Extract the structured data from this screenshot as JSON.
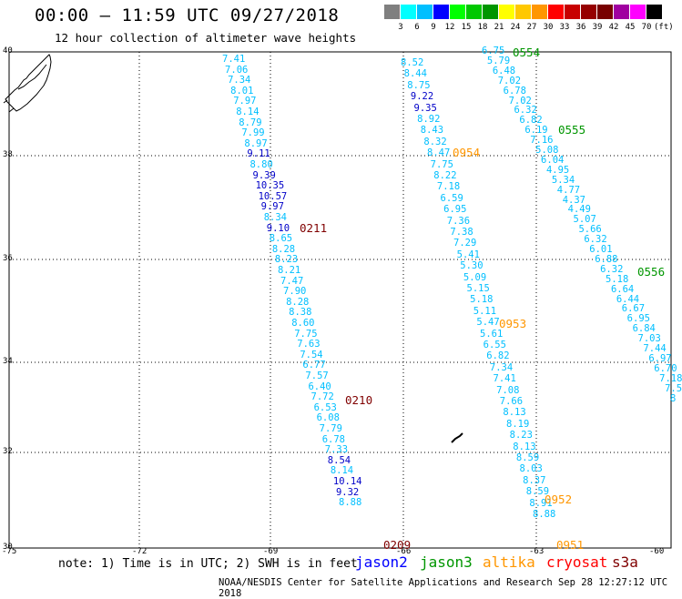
{
  "title": "00:00 – 11:59 UTC 09/27/2018",
  "subtitle": "12 hour collection of altimeter wave heights",
  "legend": {
    "labels": [
      "3",
      "6",
      "9",
      "12",
      "15",
      "18",
      "21",
      "24",
      "27",
      "30",
      "33",
      "36",
      "39",
      "42",
      "45",
      "70",
      "(ft)"
    ],
    "colors": [
      "#7f7f7f",
      "#00ffff",
      "#00bfff",
      "#0000ff",
      "#00ff00",
      "#00c800",
      "#009600",
      "#ffff00",
      "#ffc800",
      "#ff9600",
      "#ff0000",
      "#c80000",
      "#960000",
      "#780000",
      "#a000a0",
      "#ff00ff",
      "#000000"
    ]
  },
  "lat_labels": [
    "40",
    "38",
    "36",
    "34",
    "32",
    "30"
  ],
  "lon_labels": [
    "-75",
    "-72",
    "-69",
    "-66",
    "-63",
    "-60"
  ],
  "track_colors": {
    "c": "#00bfff",
    "d": "#0000c8",
    "m": "#800000",
    "o": "#ff9600",
    "g": "#009600"
  },
  "tracks": [
    {
      "points": [
        [
          "7.41",
          "c"
        ],
        [
          "7.06",
          "c"
        ],
        [
          "7.34",
          "c"
        ],
        [
          "8.01",
          "c"
        ],
        [
          "7.97",
          "c"
        ],
        [
          "8.14",
          "c"
        ],
        [
          "8.79",
          "c"
        ],
        [
          "7.99",
          "c"
        ],
        [
          "8.97",
          "c"
        ],
        [
          "9.11",
          "d"
        ],
        [
          "8.80",
          "c"
        ],
        [
          "9.39",
          "d"
        ],
        [
          "10.35",
          "d"
        ],
        [
          "10.57",
          "d"
        ],
        [
          "9.97",
          "d"
        ],
        [
          "8.34",
          "c"
        ],
        [
          "9.10",
          "d"
        ],
        [
          "8.65",
          "c"
        ],
        [
          "8.28",
          "c"
        ],
        [
          "8.23",
          "c"
        ],
        [
          "8.21",
          "c"
        ],
        [
          "7.47",
          "c"
        ],
        [
          "7.90",
          "c"
        ],
        [
          "8.28",
          "c"
        ],
        [
          "8.38",
          "c"
        ],
        [
          "8.60",
          "c"
        ],
        [
          "7.75",
          "c"
        ],
        [
          "7.63",
          "c"
        ],
        [
          "7.54",
          "c"
        ],
        [
          "6.77",
          "c"
        ],
        [
          "7.57",
          "c"
        ],
        [
          "6.40",
          "c"
        ],
        [
          "7.72",
          "c"
        ],
        [
          "6.53",
          "c"
        ],
        [
          "6.08",
          "c"
        ],
        [
          "7.79",
          "c"
        ],
        [
          "6.78",
          "c"
        ],
        [
          "7.33",
          "c"
        ],
        [
          "8.54",
          "d"
        ],
        [
          "8.14",
          "c"
        ],
        [
          "10.14",
          "d"
        ],
        [
          "9.32",
          "d"
        ],
        [
          "8.88",
          "c"
        ]
      ]
    },
    {
      "points": [
        [
          "8.52",
          "c"
        ],
        [
          "8.44",
          "c"
        ],
        [
          "8.75",
          "c"
        ],
        [
          "9.22",
          "d"
        ],
        [
          "9.35",
          "d"
        ],
        [
          "8.92",
          "c"
        ],
        [
          "8.43",
          "c"
        ],
        [
          "8.32",
          "c"
        ],
        [
          "8.47",
          "c"
        ],
        [
          "7.75",
          "c"
        ],
        [
          "8.22",
          "c"
        ],
        [
          "7.18",
          "c"
        ],
        [
          "6.59",
          "c"
        ],
        [
          "6.95",
          "c"
        ],
        [
          "7.36",
          "c"
        ],
        [
          "7.38",
          "c"
        ],
        [
          "7.29",
          "c"
        ],
        [
          "5.41",
          "c"
        ],
        [
          "5.30",
          "c"
        ],
        [
          "5.09",
          "c"
        ],
        [
          "5.15",
          "c"
        ],
        [
          "5.18",
          "c"
        ],
        [
          "5.11",
          "c"
        ],
        [
          "5.47",
          "c"
        ],
        [
          "5.61",
          "c"
        ],
        [
          "6.55",
          "c"
        ],
        [
          "6.82",
          "c"
        ],
        [
          "7.34",
          "c"
        ],
        [
          "7.41",
          "c"
        ],
        [
          "7.08",
          "c"
        ],
        [
          "7.66",
          "c"
        ],
        [
          "8.13",
          "c"
        ],
        [
          "8.19",
          "c"
        ],
        [
          "8.23",
          "c"
        ],
        [
          "8.13",
          "c"
        ],
        [
          "8.59",
          "c"
        ],
        [
          "8.03",
          "c"
        ],
        [
          "8.37",
          "c"
        ],
        [
          "8.59",
          "c"
        ],
        [
          "8.91",
          "c"
        ],
        [
          "8.88",
          "c"
        ]
      ]
    },
    {
      "points": [
        [
          "6.75",
          "c"
        ],
        [
          "5.79",
          "c"
        ],
        [
          "6.48",
          "c"
        ],
        [
          "7.02",
          "c"
        ],
        [
          "6.78",
          "c"
        ],
        [
          "7.02",
          "c"
        ],
        [
          "6.32",
          "c"
        ],
        [
          "6.82",
          "c"
        ],
        [
          "6.19",
          "c"
        ],
        [
          "7.16",
          "c"
        ],
        [
          "5.08",
          "c"
        ],
        [
          "6.04",
          "c"
        ],
        [
          "4.95",
          "c"
        ],
        [
          "5.34",
          "c"
        ],
        [
          "4.77",
          "c"
        ],
        [
          "4.37",
          "c"
        ],
        [
          "4.49",
          "c"
        ],
        [
          "5.07",
          "c"
        ],
        [
          "5.66",
          "c"
        ],
        [
          "6.32",
          "c"
        ],
        [
          "6.01",
          "c"
        ],
        [
          "6.88",
          "c"
        ],
        [
          "6.32",
          "c"
        ],
        [
          "5.18",
          "c"
        ],
        [
          "6.64",
          "c"
        ],
        [
          "6.44",
          "c"
        ],
        [
          "6.67",
          "c"
        ],
        [
          "6.95",
          "c"
        ],
        [
          "6.84",
          "c"
        ],
        [
          "7.03",
          "c"
        ],
        [
          "7.44",
          "c"
        ],
        [
          "6.97",
          "c"
        ],
        [
          "6.70",
          "c"
        ],
        [
          "7.18",
          "c"
        ],
        [
          "7.5",
          "c"
        ],
        [
          "8",
          "c"
        ]
      ]
    }
  ],
  "pass_labels": [
    {
      "text": "0554",
      "color": "g"
    },
    {
      "text": "0555",
      "color": "g"
    },
    {
      "text": "0556",
      "color": "g"
    },
    {
      "text": "0954",
      "color": "o"
    },
    {
      "text": "0953",
      "color": "o"
    },
    {
      "text": "0952",
      "color": "o"
    },
    {
      "text": "0951",
      "color": "o"
    },
    {
      "text": "0211",
      "color": "m"
    },
    {
      "text": "0210",
      "color": "m"
    },
    {
      "text": "0209",
      "color": "m"
    }
  ],
  "note": "note: 1) Time is in UTC; 2) SWH is in feet",
  "satellites": [
    {
      "name": "jason2",
      "color": "#0000ff"
    },
    {
      "name": "jason3",
      "color": "#009600"
    },
    {
      "name": "altika",
      "color": "#ff9600"
    },
    {
      "name": "cryosat",
      "color": "#ff0000"
    },
    {
      "name": "s3a",
      "color": "#800000"
    }
  ],
  "credit": "NOAA/NESDIS Center for Satellite Applications and Research    Sep 28 12:27:12 UTC 2018"
}
